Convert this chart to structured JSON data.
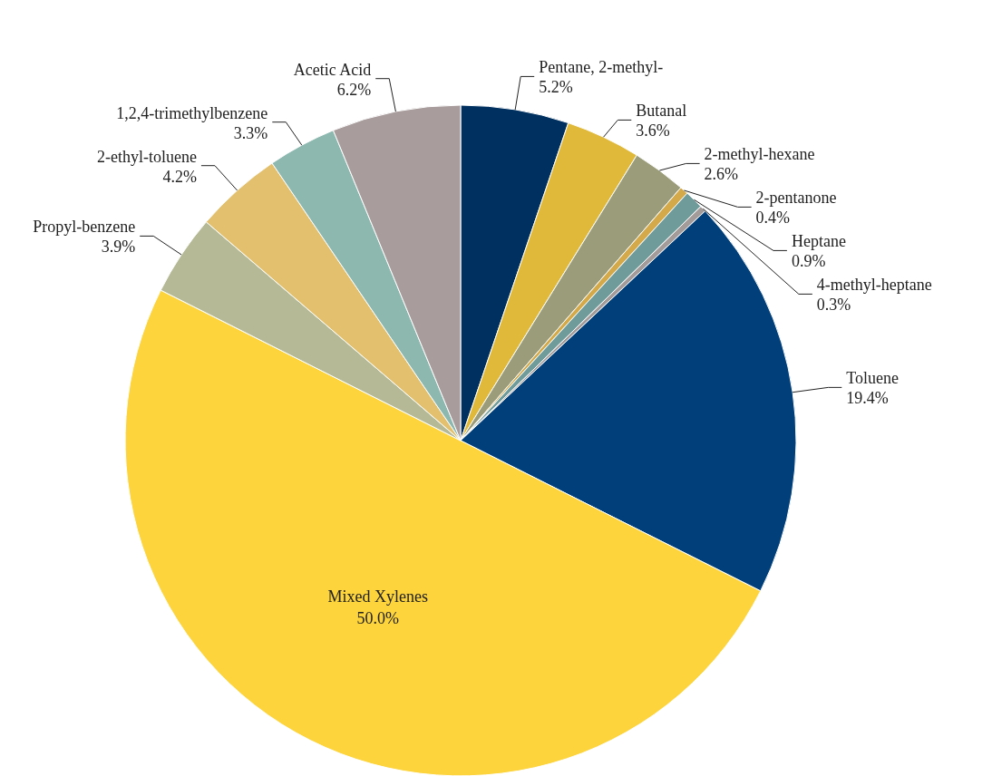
{
  "chart_data": {
    "type": "pie",
    "categories": [
      "Pentane, 2-methyl-",
      "Butanal",
      "2-methyl-hexane",
      "2-pentanone",
      "Heptane",
      "4-methyl-heptane",
      "Toluene",
      "Mixed Xylenes",
      "Propyl-benzene",
      "2-ethyl-toluene",
      "1,2,4-trimethylbenzene",
      "Acetic Acid"
    ],
    "values": [
      5.2,
      3.6,
      2.6,
      0.4,
      0.9,
      0.3,
      19.4,
      50.0,
      3.9,
      4.2,
      3.3,
      6.2
    ],
    "value_labels": [
      "5.2%",
      "3.6%",
      "2.6%",
      "0.4%",
      "0.9%",
      "0.3%",
      "19.4%",
      "50.0%",
      "3.9%",
      "4.2%",
      "3.3%",
      "6.2%"
    ],
    "colors": [
      "#00305f",
      "#e0b83a",
      "#9a9c7a",
      "#d4a94a",
      "#6f9c9a",
      "#a39a9a",
      "#003f7a",
      "#fdd43c",
      "#b5b995",
      "#e2c06e",
      "#8db8b0",
      "#a89c9c"
    ],
    "legend": false
  }
}
